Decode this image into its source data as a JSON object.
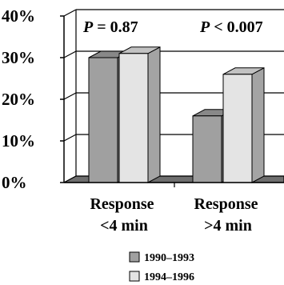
{
  "chart_data": {
    "type": "bar",
    "categories": [
      "Response\n<4 min",
      "Response\n>4 min"
    ],
    "category_lines": [
      [
        "Response",
        "<4 min"
      ],
      [
        "Response",
        ">4 min"
      ]
    ],
    "series": [
      {
        "name": "1990–1993",
        "values": [
          30,
          16
        ],
        "color": "#a0a0a0"
      },
      {
        "name": "1994–1996",
        "values": [
          31,
          26
        ],
        "color": "#e4e4e4"
      }
    ],
    "yticks": [
      "0%",
      "10%",
      "20%",
      "30%",
      "40%"
    ],
    "ylim": [
      0,
      40
    ],
    "grid": true,
    "bar_style": "3d",
    "legend_position": "bottom",
    "annotations": [
      {
        "italic": "P",
        "text": " = 0.87"
      },
      {
        "italic": "P",
        "text": " < 0.007"
      }
    ]
  }
}
